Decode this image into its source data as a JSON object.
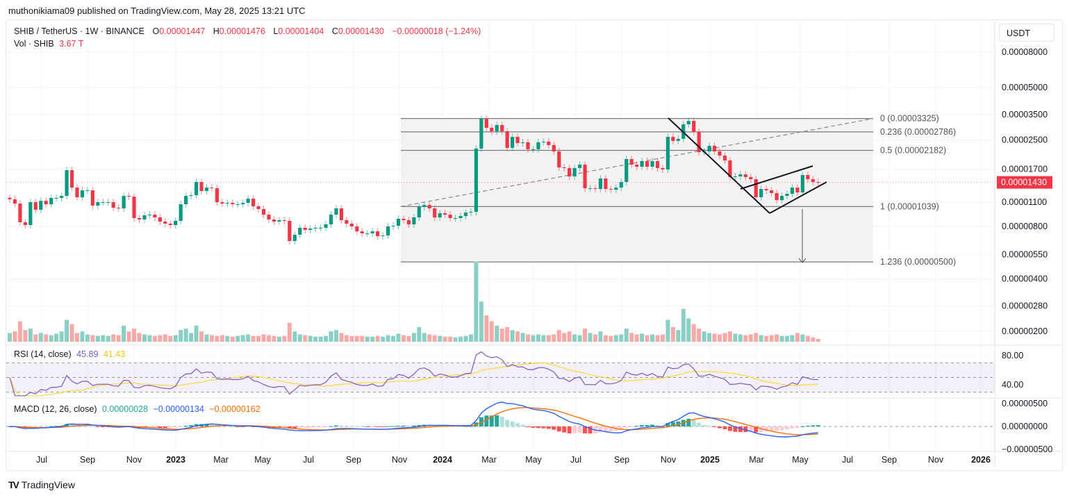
{
  "header": {
    "published": "muthonikiama09 published on TradingView.com, May 28, 2025 13:21 UTC"
  },
  "legend": {
    "symbol": "SHIB / TetherUS · 1W · BINANCE",
    "o_label": "O",
    "o": "0.00001447",
    "h_label": "H",
    "h": "0.00001476",
    "l_label": "L",
    "l": "0.00001404",
    "c_label": "C",
    "c": "0.00001430",
    "change": "−0.00000018 (−1.24%)",
    "vol_label": "Vol · SHIB",
    "vol": "3.67 T",
    "rsi_label": "RSI (14, close)",
    "rsi": "45.89",
    "rsi_ma": "41.43",
    "macd_label": "MACD (12, 26, close)",
    "macd_hist": "0.00000028",
    "macd": "−0.00000134",
    "macd_signal": "−0.00000162"
  },
  "currency_button": "USDT",
  "brand": "TradingView",
  "colors": {
    "up": "#089981",
    "down": "#f23645",
    "rsi": "#7e57c2",
    "rsi_ma": "#fdd835",
    "macd": "#2962ff",
    "signal": "#ff6d00",
    "fib_fill": "#f2f2f2"
  },
  "chart_data": {
    "type": "candlestick",
    "interval": "1W",
    "price_scale": "log",
    "ylim": [
      2e-06,
      8e-05
    ],
    "y_ticks": [
      "0.00008000",
      "0.00005000",
      "0.00003500",
      "0.00002500",
      "0.00001700",
      "0.00001100",
      "0.00000800",
      "0.00000550",
      "0.00000400",
      "0.00000280",
      "0.00000200"
    ],
    "x_ticks": [
      {
        "label": "Jul",
        "bold": false
      },
      {
        "label": "Sep",
        "bold": false
      },
      {
        "label": "Nov",
        "bold": false
      },
      {
        "label": "2023",
        "bold": true
      },
      {
        "label": "Mar",
        "bold": false
      },
      {
        "label": "May",
        "bold": false
      },
      {
        "label": "Jul",
        "bold": false
      },
      {
        "label": "Sep",
        "bold": false
      },
      {
        "label": "Nov",
        "bold": false
      },
      {
        "label": "2024",
        "bold": true
      },
      {
        "label": "Mar",
        "bold": false
      },
      {
        "label": "May",
        "bold": false
      },
      {
        "label": "Jul",
        "bold": false
      },
      {
        "label": "Sep",
        "bold": false
      },
      {
        "label": "Nov",
        "bold": false
      },
      {
        "label": "2025",
        "bold": true
      },
      {
        "label": "Mar",
        "bold": false
      },
      {
        "label": "May",
        "bold": false
      },
      {
        "label": "Jul",
        "bold": false
      },
      {
        "label": "Sep",
        "bold": false
      },
      {
        "label": "Nov",
        "bold": false
      },
      {
        "label": "2026",
        "bold": true
      }
    ],
    "last_price": "0.00001430",
    "closes": [
      1.143e-05,
      1.081e-05,
      8.44e-06,
      8.14e-06,
      1.101e-05,
      9.96e-06,
      1.121e-05,
      1.071e-05,
      1.164e-05,
      1.164e-05,
      1.196e-05,
      1.68e-05,
      1.335e-05,
      1.174e-05,
      1.287e-05,
      1.287e-05,
      1.052e-05,
      1.101e-05,
      1.101e-05,
      1.101e-05,
      1.023e-05,
      1.014e-05,
      1.196e-05,
      1.185e-05,
      8.92e-06,
      8.76e-06,
      9.26e-06,
      9.34e-06,
      9e-06,
      8.52e-06,
      8.29e-06,
      8.14e-06,
      8.6e-06,
      1.071e-05,
      1.196e-05,
      1.207e-05,
      1.437e-05,
      1.275e-05,
      1.335e-05,
      1.323e-05,
      1.101e-05,
      1.081e-05,
      1.091e-05,
      1.071e-05,
      1.071e-05,
      1.091e-05,
      1.153e-05,
      1.042e-05,
      1.005e-05,
      9.34e-06,
      8.76e-06,
      8.52e-06,
      8.68e-06,
      8.6e-06,
      6.59e-06,
      7.16e-06,
      7.85e-06,
      7.63e-06,
      7.77e-06,
      7.85e-06,
      7.85e-06,
      8.21e-06,
      9.34e-06,
      1.014e-05,
      8.68e-06,
      8.29e-06,
      7.99e-06,
      7.49e-06,
      7.29e-06,
      7.29e-06,
      7.49e-06,
      7.03e-06,
      7.09e-06,
      7.99e-06,
      8.06e-06,
      8.84e-06,
      8.68e-06,
      8.21e-06,
      9e-06,
      1.033e-05,
      1.061e-05,
      1.014e-05,
      9e-06,
      9.52e-06,
      9.34e-06,
      8.92e-06,
      8.92e-06,
      9.17e-06,
      9.6e-06,
      9.69e-06,
      2.235e-05,
      3.31e-05,
      2.94e-05,
      2.808e-05,
      3.049e-05,
      2.808e-05,
      2.255e-05,
      2.609e-05,
      2.404e-05,
      2.427e-05,
      2.214e-05,
      2.214e-05,
      2.427e-05,
      2.449e-05,
      2.339e-05,
      2.152e-05,
      1.743e-05,
      1.727e-05,
      1.547e-05,
      1.727e-05,
      1.808e-05,
      1.323e-05,
      1.323e-05,
      1.31e-05,
      1.505e-05,
      1.31e-05,
      1.298e-05,
      1.335e-05,
      1.437e-05,
      1.946e-05,
      1.808e-05,
      1.759e-05,
      1.893e-05,
      1.759e-05,
      1.893e-05,
      1.727e-05,
      1.696e-05,
      2.609e-05,
      2.472e-05,
      2.541e-05,
      3.078e-05,
      3.22e-05,
      2.782e-05,
      2.132e-05,
      2.152e-05,
      2.318e-05,
      2.152e-05,
      2.037e-05,
      1.91e-05,
      1.533e-05,
      1.547e-05,
      1.59e-05,
      1.533e-05,
      1.491e-05,
      1.174e-05,
      1.31e-05,
      1.287e-05,
      1.241e-05,
      1.131e-05,
      1.196e-05,
      1.229e-05,
      1.335e-05,
      1.252e-05,
      1.575e-05,
      1.491e-05,
      1.437e-05,
      1.43e-05
    ],
    "volume_unit": "T",
    "volume": [
      12,
      14,
      28,
      16,
      18,
      10,
      12,
      10,
      9,
      11,
      14,
      30,
      24,
      12,
      14,
      10,
      9,
      8,
      9,
      8,
      10,
      9,
      22,
      14,
      18,
      12,
      10,
      9,
      8,
      9,
      10,
      8,
      9,
      16,
      18,
      12,
      22,
      14,
      10,
      9,
      8,
      9,
      8,
      7,
      8,
      9,
      10,
      8,
      8,
      10,
      9,
      8,
      7,
      8,
      26,
      14,
      10,
      9,
      8,
      7,
      7,
      8,
      14,
      16,
      12,
      9,
      8,
      8,
      8,
      7,
      7,
      8,
      7,
      9,
      8,
      11,
      9,
      8,
      12,
      20,
      12,
      10,
      9,
      8,
      7,
      7,
      6,
      7,
      8,
      10,
      110,
      55,
      36,
      28,
      22,
      18,
      20,
      16,
      14,
      12,
      10,
      9,
      10,
      9,
      9,
      10,
      16,
      12,
      14,
      10,
      9,
      18,
      12,
      10,
      14,
      9,
      8,
      9,
      10,
      18,
      12,
      10,
      11,
      9,
      10,
      9,
      10,
      30,
      20,
      16,
      45,
      32,
      24,
      18,
      14,
      12,
      11,
      10,
      12,
      14,
      11,
      10,
      9,
      10,
      12,
      9,
      8,
      9,
      10,
      8,
      8,
      9,
      12,
      10,
      8,
      6,
      4
    ],
    "fib_levels": [
      {
        "label": "0 (0.00003325)",
        "price": 3.325e-05
      },
      {
        "label": "0.236 (0.00002786)",
        "price": 2.786e-05
      },
      {
        "label": "0.5 (0.00002182)",
        "price": 2.182e-05
      },
      {
        "label": "1 (0.00001039)",
        "price": 1.039e-05
      },
      {
        "label": "1.236 (0.00000500)",
        "price": 5e-06
      }
    ],
    "rsi": {
      "period": 14,
      "upper": 70,
      "middle": 50,
      "lower": 30,
      "ticks": [
        "80.00",
        "40.00"
      ]
    },
    "macd": {
      "fast": 12,
      "slow": 26,
      "signal": 9,
      "ticks": [
        "0.00000500",
        "0.00000000",
        "−0.00000500"
      ]
    }
  }
}
